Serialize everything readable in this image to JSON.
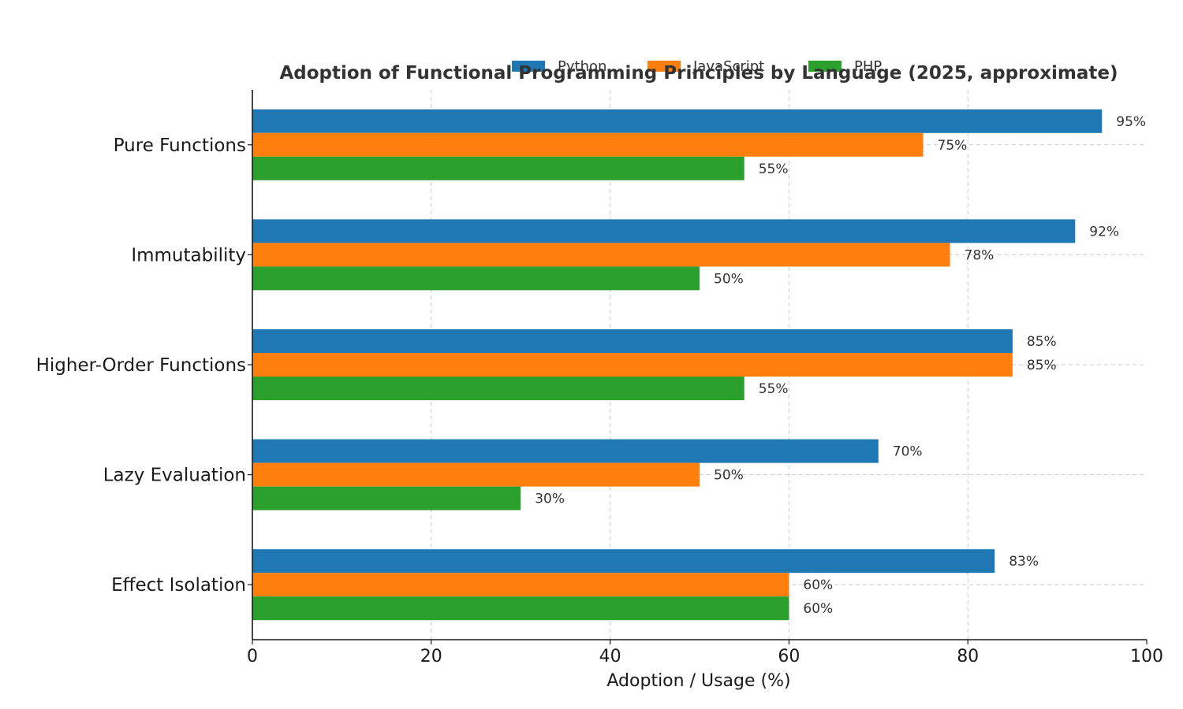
{
  "chart_data": {
    "type": "bar",
    "orientation": "horizontal",
    "title": "Adoption of Functional Programming Principles by Language (2025, approximate)",
    "xlabel": "Adoption / Usage (%)",
    "ylabel": "",
    "xlim": [
      0,
      100
    ],
    "x_ticks": [
      "0",
      "20",
      "40",
      "60",
      "80",
      "100"
    ],
    "categories": [
      "Pure Functions",
      "Immutability",
      "Higher-Order Functions",
      "Lazy Evaluation",
      "Effect Isolation"
    ],
    "series": [
      {
        "name": "Python",
        "color": "#1f77b4",
        "values": [
          95,
          92,
          85,
          70,
          83
        ]
      },
      {
        "name": "JavaScript",
        "color": "#ff7f0e",
        "values": [
          75,
          78,
          85,
          50,
          60
        ]
      },
      {
        "name": "PHP",
        "color": "#2ca02c",
        "values": [
          55,
          50,
          55,
          30,
          60
        ]
      }
    ],
    "value_label_suffix": "%",
    "grid": true,
    "legend_position": "top-center"
  }
}
